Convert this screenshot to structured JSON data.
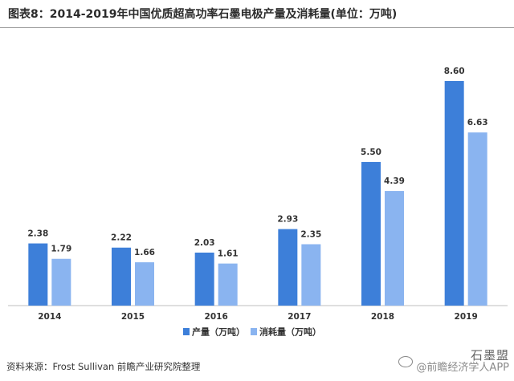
{
  "title": "图表8：2014-2019年中国优质超高功率石墨电极产量及消耗量(单位：万吨)",
  "source": "资料来源：Frost Sullivan  前瞻产业研究院整理",
  "watermark": {
    "line1": "石墨盟",
    "line2": "@前瞻经济学人APP"
  },
  "colors": {
    "production": "#3d7fd9",
    "consumption": "#8ab4f0"
  },
  "chart_data": {
    "type": "bar",
    "title": "图表8：2014-2019年中国优质超高功率石墨电极产量及消耗量(单位：万吨)",
    "xlabel": "",
    "ylabel": "",
    "categories": [
      "2014",
      "2015",
      "2016",
      "2017",
      "2018",
      "2019"
    ],
    "series": [
      {
        "name": "产量（万吨）",
        "values": [
          2.38,
          2.22,
          2.03,
          2.93,
          5.5,
          8.6
        ]
      },
      {
        "name": "消耗量（万吨）",
        "values": [
          1.79,
          1.66,
          1.61,
          2.35,
          4.39,
          6.63
        ]
      }
    ],
    "value_labels": [
      [
        "2.38",
        "2.22",
        "2.03",
        "2.93",
        "5.50",
        "8.60"
      ],
      [
        "1.79",
        "1.66",
        "1.61",
        "2.35",
        "4.39",
        "6.63"
      ]
    ],
    "ylim": [
      0,
      8.6
    ],
    "grid": false,
    "legend_position": "bottom"
  }
}
